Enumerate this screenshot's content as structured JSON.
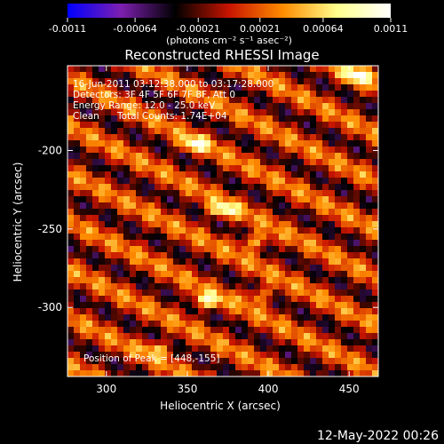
{
  "chart_data": {
    "type": "heatmap",
    "title": "Reconstructed RHESSI Image",
    "xlabel": "Heliocentric X (arcsec)",
    "ylabel": "Heliocentric Y (arcsec)",
    "xlim": [
      276,
      468
    ],
    "ylim": [
      -344,
      -146
    ],
    "x_ticks": [
      300,
      350,
      400,
      450
    ],
    "y_ticks": [
      -200,
      -250,
      -300
    ],
    "colorbar": {
      "range": [
        -0.0011,
        0.0011
      ],
      "ticks": [
        "-0.0011",
        "-0.00064",
        "-0.00021",
        "0.00021",
        "0.00064",
        "0.0011"
      ],
      "unit_label": "(photons cm⁻² s⁻¹ asec⁻²)",
      "colors": [
        "#0000ff",
        "#7d1fb0",
        "#000000",
        "#c81400",
        "#ff8c00",
        "#ffff8c",
        "#ffffff"
      ]
    },
    "annotations": {
      "time": "16-Jun-2011 03:12:38.000 to 03:17:28.000",
      "detectors": "Detectors: 3F 4F 5F 6F 7F 8F, Att 0",
      "energy": "Energy Range: 12.0 - 25.0 keV",
      "method": "Clean",
      "counts": "Total Counts: 1.74E+04",
      "peak": "Position of Peak = [448,-155]"
    },
    "peak": [
      448,
      -155
    ],
    "bright_sources": [
      {
        "x": 455,
        "y": -152,
        "intensity": 1.0
      },
      {
        "x": 355,
        "y": -196,
        "intensity": 0.85
      },
      {
        "x": 372,
        "y": -238,
        "intensity": 0.9
      },
      {
        "x": 392,
        "y": -258,
        "intensity": 0.75
      },
      {
        "x": 362,
        "y": -296,
        "intensity": 0.85
      },
      {
        "x": 395,
        "y": -292,
        "intensity": 0.6
      },
      {
        "x": 332,
        "y": -326,
        "intensity": 0.55
      }
    ]
  },
  "footer": {
    "date": "12-May-2022 00:26"
  }
}
